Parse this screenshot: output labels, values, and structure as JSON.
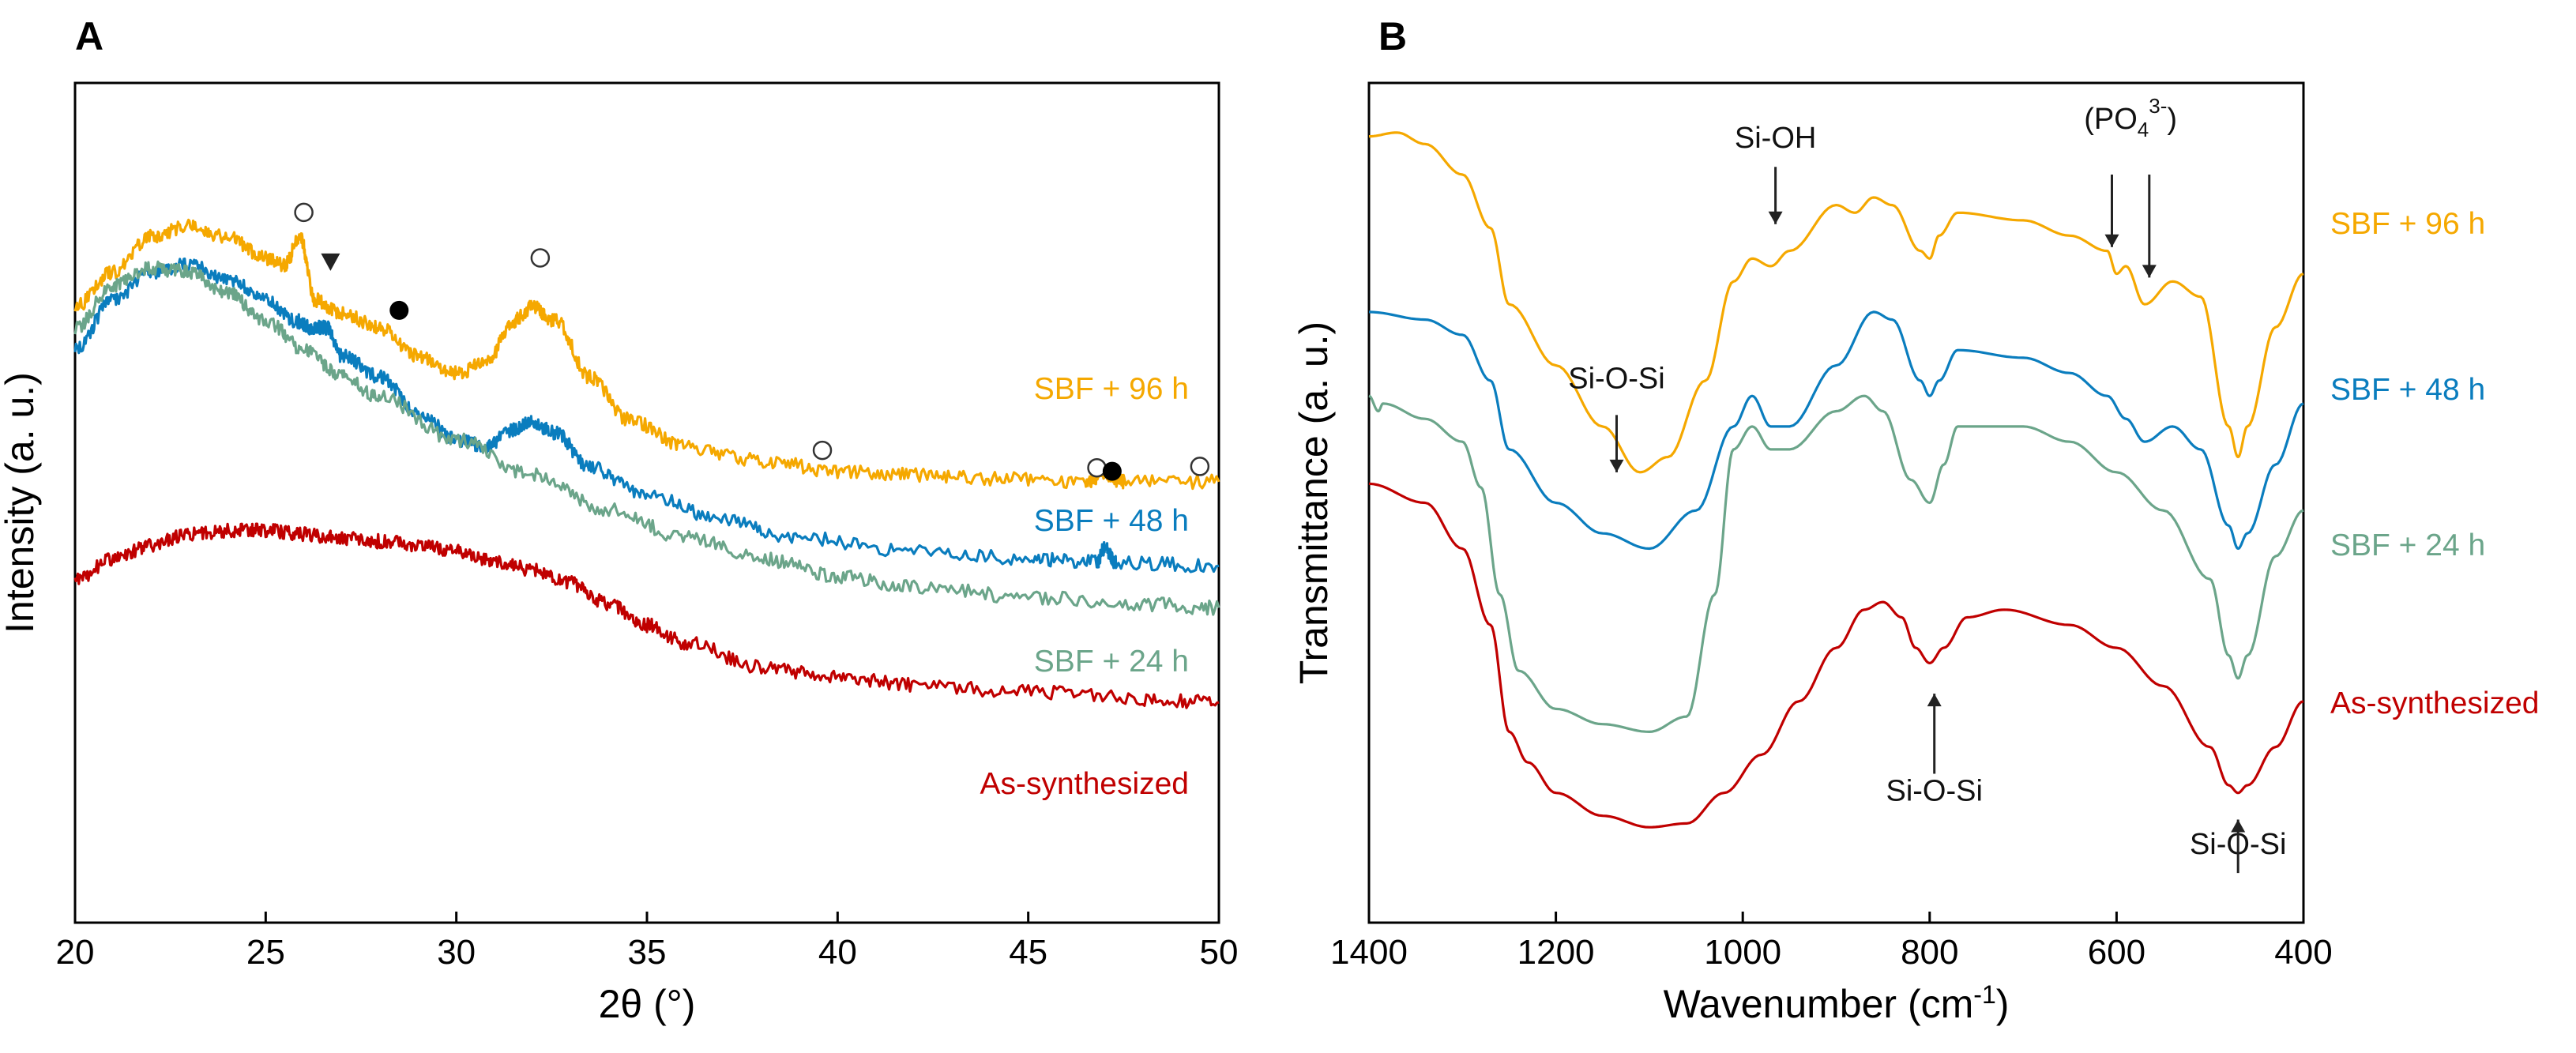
{
  "chart_data": [
    {
      "panel": "A",
      "type": "line",
      "xlabel": "2θ (°)",
      "ylabel": "Intensity (a. u.)",
      "xlim": [
        20,
        50
      ],
      "x_ticks": [
        20,
        25,
        30,
        35,
        40,
        45,
        50
      ],
      "y_ticks_shown": false,
      "series": [
        {
          "name": "SBF + 96 h",
          "color": "#F5A800",
          "points": [
            [
              20,
              0.43
            ],
            [
              21,
              0.48
            ],
            [
              22,
              0.53
            ],
            [
              23,
              0.545
            ],
            [
              24,
              0.53
            ],
            [
              25,
              0.5
            ],
            [
              25.5,
              0.49
            ],
            [
              25.9,
              0.53
            ],
            [
              26.3,
              0.44
            ],
            [
              27,
              0.42
            ],
            [
              28,
              0.4
            ],
            [
              29,
              0.36
            ],
            [
              30,
              0.335
            ],
            [
              30.8,
              0.35
            ],
            [
              31.5,
              0.41
            ],
            [
              32,
              0.43
            ],
            [
              32.6,
              0.41
            ],
            [
              33.5,
              0.33
            ],
            [
              34.5,
              0.27
            ],
            [
              36,
              0.23
            ],
            [
              38,
              0.21
            ],
            [
              40,
              0.195
            ],
            [
              42,
              0.19
            ],
            [
              44,
              0.185
            ],
            [
              46.5,
              0.18
            ],
            [
              47,
              0.19
            ],
            [
              47.5,
              0.18
            ],
            [
              50,
              0.18
            ]
          ]
        },
        {
          "name": "SBF + 48 h",
          "color": "#0A7DBE",
          "points": [
            [
              20,
              0.37
            ],
            [
              21,
              0.44
            ],
            [
              22,
              0.48
            ],
            [
              23,
              0.49
            ],
            [
              24,
              0.47
            ],
            [
              25,
              0.44
            ],
            [
              25.8,
              0.41
            ],
            [
              26.2,
              0.4
            ],
            [
              26.6,
              0.4
            ],
            [
              27,
              0.36
            ],
            [
              28,
              0.33
            ],
            [
              29,
              0.28
            ],
            [
              30,
              0.24
            ],
            [
              30.8,
              0.23
            ],
            [
              31.5,
              0.255
            ],
            [
              32,
              0.265
            ],
            [
              32.6,
              0.25
            ],
            [
              33.5,
              0.2
            ],
            [
              35,
              0.16
            ],
            [
              37,
              0.125
            ],
            [
              39,
              0.1
            ],
            [
              42,
              0.08
            ],
            [
              45,
              0.07
            ],
            [
              46.8,
              0.065
            ],
            [
              47,
              0.085
            ],
            [
              47.3,
              0.065
            ],
            [
              50,
              0.06
            ]
          ]
        },
        {
          "name": "SBF + 24 h",
          "color": "#6BA58A",
          "points": [
            [
              20,
              0.4
            ],
            [
              21,
              0.46
            ],
            [
              22,
              0.485
            ],
            [
              23,
              0.48
            ],
            [
              24,
              0.45
            ],
            [
              25,
              0.41
            ],
            [
              26,
              0.37
            ],
            [
              27,
              0.33
            ],
            [
              28,
              0.3
            ],
            [
              30,
              0.24
            ],
            [
              32,
              0.19
            ],
            [
              34,
              0.14
            ],
            [
              36,
              0.1
            ],
            [
              38,
              0.07
            ],
            [
              40,
              0.045
            ],
            [
              42,
              0.03
            ],
            [
              45,
              0.015
            ],
            [
              48,
              0.005
            ],
            [
              50,
              0.0
            ]
          ]
        },
        {
          "name": "As-synthesized",
          "color": "#C00000",
          "points": [
            [
              20,
              0.04
            ],
            [
              21,
              0.07
            ],
            [
              22,
              0.09
            ],
            [
              23,
              0.105
            ],
            [
              24,
              0.11
            ],
            [
              25,
              0.11
            ],
            [
              26,
              0.105
            ],
            [
              27,
              0.1
            ],
            [
              28,
              0.095
            ],
            [
              29,
              0.09
            ],
            [
              30,
              0.08
            ],
            [
              31,
              0.065
            ],
            [
              32,
              0.055
            ],
            [
              33,
              0.035
            ],
            [
              34,
              0.005
            ],
            [
              35,
              -0.025
            ],
            [
              36,
              -0.05
            ],
            [
              38,
              -0.085
            ],
            [
              40,
              -0.1
            ],
            [
              42,
              -0.11
            ],
            [
              45,
              -0.12
            ],
            [
              48,
              -0.13
            ],
            [
              50,
              -0.135
            ]
          ]
        }
      ],
      "markers": [
        {
          "symbol": "open-circle",
          "x": 26.0,
          "y": 0.565
        },
        {
          "symbol": "filled-triangle",
          "x": 26.7,
          "y": 0.495
        },
        {
          "symbol": "filled-circle",
          "x": 28.5,
          "y": 0.425
        },
        {
          "symbol": "open-circle",
          "x": 32.2,
          "y": 0.5
        },
        {
          "symbol": "open-circle",
          "x": 39.6,
          "y": 0.225
        },
        {
          "symbol": "open-circle",
          "x": 46.8,
          "y": 0.2
        },
        {
          "symbol": "filled-circle",
          "x": 47.2,
          "y": 0.195
        },
        {
          "symbol": "open-circle",
          "x": 49.5,
          "y": 0.202
        }
      ]
    },
    {
      "panel": "B",
      "type": "line",
      "xlabel": "Wavenumber (cm",
      "xlabel_sup": "-1",
      "xlabel_end": ")",
      "ylabel": "Transmittance (a. u.)",
      "xlim": [
        1400,
        400
      ],
      "x_ticks": [
        1400,
        1200,
        1000,
        800,
        600,
        400
      ],
      "y_ticks_shown": false,
      "series": [
        {
          "name": "SBF + 96 h",
          "color": "#F5A800",
          "points": [
            [
              1400,
              0.98
            ],
            [
              1370,
              0.985
            ],
            [
              1340,
              0.97
            ],
            [
              1300,
              0.93
            ],
            [
              1270,
              0.86
            ],
            [
              1250,
              0.76
            ],
            [
              1200,
              0.68
            ],
            [
              1150,
              0.6
            ],
            [
              1110,
              0.54
            ],
            [
              1080,
              0.56
            ],
            [
              1040,
              0.66
            ],
            [
              1010,
              0.79
            ],
            [
              990,
              0.82
            ],
            [
              970,
              0.81
            ],
            [
              950,
              0.83
            ],
            [
              900,
              0.89
            ],
            [
              880,
              0.88
            ],
            [
              860,
              0.9
            ],
            [
              840,
              0.89
            ],
            [
              810,
              0.83
            ],
            [
              800,
              0.82
            ],
            [
              790,
              0.85
            ],
            [
              770,
              0.88
            ],
            [
              700,
              0.87
            ],
            [
              650,
              0.85
            ],
            [
              610,
              0.83
            ],
            [
              600,
              0.8
            ],
            [
              590,
              0.81
            ],
            [
              570,
              0.76
            ],
            [
              540,
              0.79
            ],
            [
              510,
              0.77
            ],
            [
              480,
              0.6
            ],
            [
              470,
              0.56
            ],
            [
              460,
              0.6
            ],
            [
              430,
              0.73
            ],
            [
              400,
              0.8
            ]
          ]
        },
        {
          "name": "SBF + 48 h",
          "color": "#0A7DBE",
          "points": [
            [
              1400,
              0.75
            ],
            [
              1340,
              0.74
            ],
            [
              1300,
              0.72
            ],
            [
              1270,
              0.66
            ],
            [
              1250,
              0.57
            ],
            [
              1200,
              0.5
            ],
            [
              1150,
              0.46
            ],
            [
              1100,
              0.44
            ],
            [
              1050,
              0.49
            ],
            [
              1010,
              0.6
            ],
            [
              990,
              0.64
            ],
            [
              970,
              0.6
            ],
            [
              950,
              0.6
            ],
            [
              900,
              0.68
            ],
            [
              860,
              0.75
            ],
            [
              840,
              0.74
            ],
            [
              810,
              0.66
            ],
            [
              800,
              0.64
            ],
            [
              790,
              0.66
            ],
            [
              770,
              0.7
            ],
            [
              700,
              0.69
            ],
            [
              650,
              0.67
            ],
            [
              610,
              0.64
            ],
            [
              590,
              0.61
            ],
            [
              570,
              0.58
            ],
            [
              540,
              0.6
            ],
            [
              510,
              0.57
            ],
            [
              480,
              0.47
            ],
            [
              470,
              0.44
            ],
            [
              460,
              0.46
            ],
            [
              430,
              0.55
            ],
            [
              400,
              0.63
            ]
          ]
        },
        {
          "name": "SBF + 24 h",
          "color": "#6BA58A",
          "points": [
            [
              1400,
              0.64
            ],
            [
              1390,
              0.62
            ],
            [
              1385,
              0.63
            ],
            [
              1340,
              0.61
            ],
            [
              1300,
              0.58
            ],
            [
              1280,
              0.52
            ],
            [
              1260,
              0.38
            ],
            [
              1240,
              0.28
            ],
            [
              1200,
              0.23
            ],
            [
              1150,
              0.21
            ],
            [
              1100,
              0.2
            ],
            [
              1060,
              0.22
            ],
            [
              1030,
              0.38
            ],
            [
              1010,
              0.57
            ],
            [
              990,
              0.6
            ],
            [
              970,
              0.57
            ],
            [
              950,
              0.57
            ],
            [
              900,
              0.62
            ],
            [
              870,
              0.64
            ],
            [
              850,
              0.62
            ],
            [
              820,
              0.53
            ],
            [
              800,
              0.5
            ],
            [
              785,
              0.55
            ],
            [
              770,
              0.6
            ],
            [
              700,
              0.6
            ],
            [
              650,
              0.58
            ],
            [
              600,
              0.54
            ],
            [
              550,
              0.49
            ],
            [
              500,
              0.4
            ],
            [
              480,
              0.3
            ],
            [
              470,
              0.27
            ],
            [
              460,
              0.3
            ],
            [
              430,
              0.43
            ],
            [
              400,
              0.49
            ]
          ]
        },
        {
          "name": "As-synthesized",
          "color": "#C00000",
          "points": [
            [
              1400,
              0.525
            ],
            [
              1340,
              0.5
            ],
            [
              1300,
              0.44
            ],
            [
              1270,
              0.34
            ],
            [
              1250,
              0.2
            ],
            [
              1230,
              0.16
            ],
            [
              1200,
              0.12
            ],
            [
              1150,
              0.09
            ],
            [
              1100,
              0.075
            ],
            [
              1060,
              0.08
            ],
            [
              1020,
              0.12
            ],
            [
              980,
              0.17
            ],
            [
              940,
              0.24
            ],
            [
              900,
              0.31
            ],
            [
              870,
              0.36
            ],
            [
              850,
              0.37
            ],
            [
              830,
              0.35
            ],
            [
              815,
              0.31
            ],
            [
              800,
              0.29
            ],
            [
              785,
              0.31
            ],
            [
              760,
              0.35
            ],
            [
              720,
              0.36
            ],
            [
              650,
              0.34
            ],
            [
              600,
              0.31
            ],
            [
              550,
              0.26
            ],
            [
              500,
              0.18
            ],
            [
              480,
              0.13
            ],
            [
              470,
              0.12
            ],
            [
              460,
              0.13
            ],
            [
              430,
              0.18
            ],
            [
              400,
              0.24
            ]
          ]
        }
      ],
      "annotations": [
        {
          "label": "Si-O-Si",
          "x": 1135,
          "direction": "down",
          "label_y": 0.65,
          "arrow_from": 0.615,
          "arrow_to": 0.54
        },
        {
          "label": "Si-OH",
          "x": 965,
          "direction": "down",
          "label_y": 0.965,
          "arrow_from": 0.94,
          "arrow_to": 0.865
        },
        {
          "label": "Si-O-Si",
          "x": 795,
          "direction": "up",
          "label_y": 0.11,
          "arrow_from": 0.145,
          "arrow_to": 0.25
        },
        {
          "label": "Si-O-Si",
          "x": 470,
          "direction": "up",
          "label_y": 0.04,
          "arrow_from": 0.015,
          "arrow_to": 0.085
        }
      ],
      "phosphate_label": {
        "text": "(PO",
        "sub": "4",
        "sup": "3-",
        "close": ")"
      },
      "phosphate_arrows": [
        605,
        565
      ]
    }
  ],
  "panel_labels": [
    "A",
    "B"
  ],
  "series_labels": {
    "A": [
      "SBF + 96 h",
      "SBF + 48 h",
      "SBF + 24 h",
      "As-synthesized"
    ],
    "B": [
      "SBF + 96 h",
      "SBF + 48 h",
      "SBF + 24 h",
      "As-synthesized"
    ]
  },
  "colors": {
    "sbf96": "#F5A800",
    "sbf48": "#0A7DBE",
    "sbf24": "#6BA58A",
    "as": "#C00000"
  }
}
